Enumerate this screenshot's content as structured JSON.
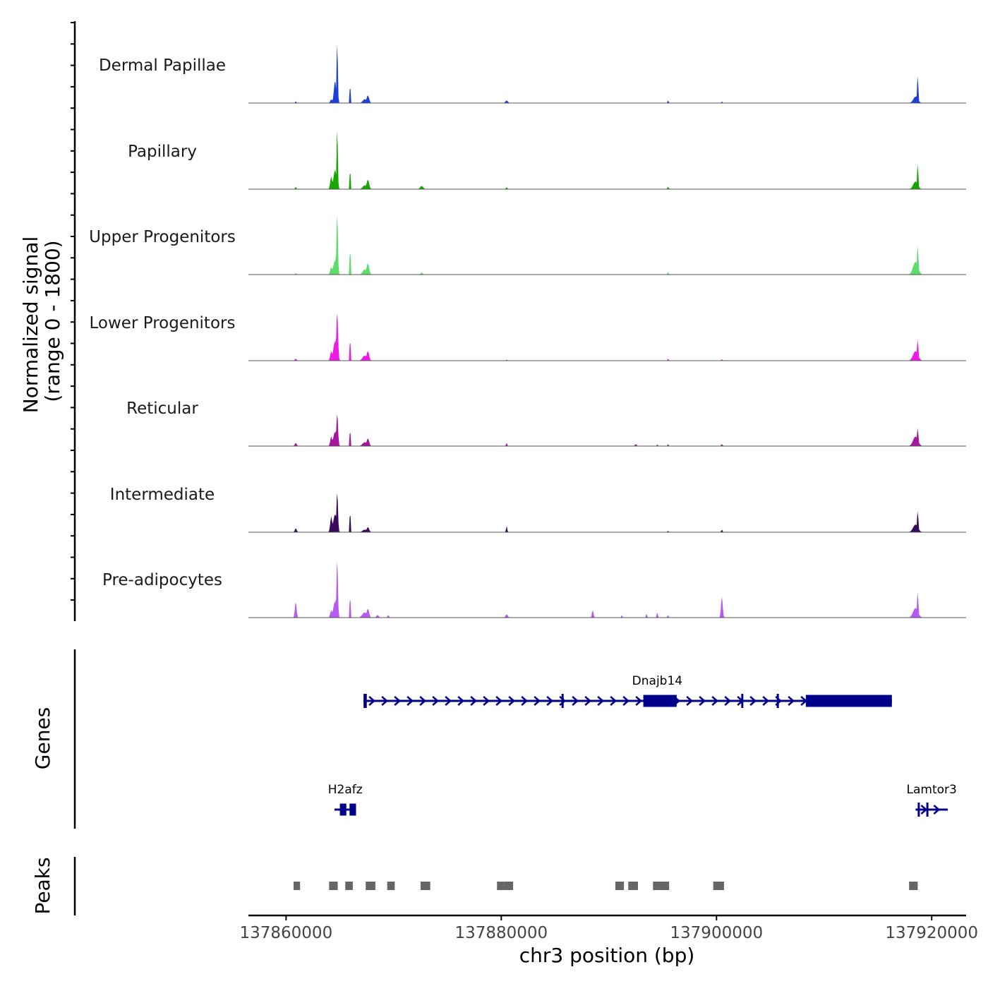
{
  "chart_data": {
    "type": "area",
    "region": {
      "chromosome": "chr3",
      "start": 137856500,
      "end": 137923200
    },
    "y_axis": {
      "label_line1": "Normalized signal",
      "label_line2": "(range 0 - 1800)",
      "range": [
        0,
        1800
      ]
    },
    "x_axis": {
      "label": "chr3 position (bp)",
      "ticks": [
        137860000,
        137880000,
        137900000,
        137920000
      ]
    },
    "tracks": [
      {
        "name": "Dermal Papillae",
        "color": "#1F3FD6",
        "peaks": [
          {
            "pos": 137860900,
            "h": 0.03,
            "w": 140
          },
          {
            "pos": 137864200,
            "h": 0.06,
            "w": 260
          },
          {
            "pos": 137864750,
            "h": 1.0,
            "w": 160
          },
          {
            "pos": 137864550,
            "h": 0.35,
            "w": 300
          },
          {
            "pos": 137865950,
            "h": 0.35,
            "w": 110
          },
          {
            "pos": 137867600,
            "h": 0.12,
            "w": 330
          },
          {
            "pos": 137867300,
            "h": 0.06,
            "w": 500
          },
          {
            "pos": 137880500,
            "h": 0.04,
            "w": 330
          },
          {
            "pos": 137895500,
            "h": 0.04,
            "w": 160
          },
          {
            "pos": 137900500,
            "h": 0.03,
            "w": 120
          },
          {
            "pos": 137918700,
            "h": 0.45,
            "w": 160
          },
          {
            "pos": 137918500,
            "h": 0.1,
            "w": 600
          }
        ]
      },
      {
        "name": "Papillary",
        "color": "#16A800",
        "peaks": [
          {
            "pos": 137860900,
            "h": 0.04,
            "w": 140
          },
          {
            "pos": 137864200,
            "h": 0.2,
            "w": 260
          },
          {
            "pos": 137864750,
            "h": 1.0,
            "w": 160
          },
          {
            "pos": 137864550,
            "h": 0.3,
            "w": 400
          },
          {
            "pos": 137865950,
            "h": 0.38,
            "w": 110
          },
          {
            "pos": 137867600,
            "h": 0.15,
            "w": 330
          },
          {
            "pos": 137867300,
            "h": 0.06,
            "w": 500
          },
          {
            "pos": 137872600,
            "h": 0.05,
            "w": 400
          },
          {
            "pos": 137880500,
            "h": 0.03,
            "w": 200
          },
          {
            "pos": 137895500,
            "h": 0.04,
            "w": 160
          },
          {
            "pos": 137918700,
            "h": 0.42,
            "w": 160
          },
          {
            "pos": 137918500,
            "h": 0.12,
            "w": 600
          }
        ]
      },
      {
        "name": "Upper Progenitors",
        "color": "#5EDC6A",
        "peaks": [
          {
            "pos": 137860900,
            "h": 0.03,
            "w": 140
          },
          {
            "pos": 137864200,
            "h": 0.12,
            "w": 260
          },
          {
            "pos": 137864750,
            "h": 1.0,
            "w": 180
          },
          {
            "pos": 137864550,
            "h": 0.22,
            "w": 450
          },
          {
            "pos": 137865950,
            "h": 0.5,
            "w": 110
          },
          {
            "pos": 137867600,
            "h": 0.18,
            "w": 330
          },
          {
            "pos": 137867300,
            "h": 0.08,
            "w": 520
          },
          {
            "pos": 137872600,
            "h": 0.03,
            "w": 300
          },
          {
            "pos": 137895500,
            "h": 0.04,
            "w": 160
          },
          {
            "pos": 137918700,
            "h": 0.48,
            "w": 170
          },
          {
            "pos": 137918500,
            "h": 0.2,
            "w": 650
          }
        ]
      },
      {
        "name": "Lower Progenitors",
        "color": "#EE1AE6",
        "peaks": [
          {
            "pos": 137860900,
            "h": 0.03,
            "w": 250
          },
          {
            "pos": 137864200,
            "h": 0.15,
            "w": 260
          },
          {
            "pos": 137864750,
            "h": 0.78,
            "w": 220
          },
          {
            "pos": 137864550,
            "h": 0.3,
            "w": 450
          },
          {
            "pos": 137865950,
            "h": 0.42,
            "w": 110
          },
          {
            "pos": 137867600,
            "h": 0.15,
            "w": 330
          },
          {
            "pos": 137867300,
            "h": 0.08,
            "w": 550
          },
          {
            "pos": 137880500,
            "h": 0.02,
            "w": 150
          },
          {
            "pos": 137895500,
            "h": 0.03,
            "w": 160
          },
          {
            "pos": 137900500,
            "h": 0.02,
            "w": 200
          },
          {
            "pos": 137918700,
            "h": 0.35,
            "w": 170
          },
          {
            "pos": 137918500,
            "h": 0.15,
            "w": 650
          }
        ]
      },
      {
        "name": "Reticular",
        "color": "#A7169F",
        "peaks": [
          {
            "pos": 137860900,
            "h": 0.05,
            "w": 250
          },
          {
            "pos": 137864200,
            "h": 0.15,
            "w": 260
          },
          {
            "pos": 137864750,
            "h": 0.52,
            "w": 220
          },
          {
            "pos": 137864550,
            "h": 0.22,
            "w": 450
          },
          {
            "pos": 137865950,
            "h": 0.32,
            "w": 110
          },
          {
            "pos": 137867600,
            "h": 0.12,
            "w": 330
          },
          {
            "pos": 137867300,
            "h": 0.06,
            "w": 550
          },
          {
            "pos": 137880500,
            "h": 0.05,
            "w": 150
          },
          {
            "pos": 137892500,
            "h": 0.03,
            "w": 250
          },
          {
            "pos": 137894500,
            "h": 0.03,
            "w": 120
          },
          {
            "pos": 137895500,
            "h": 0.03,
            "w": 160
          },
          {
            "pos": 137900500,
            "h": 0.03,
            "w": 200
          },
          {
            "pos": 137918700,
            "h": 0.3,
            "w": 170
          },
          {
            "pos": 137918500,
            "h": 0.15,
            "w": 650
          }
        ]
      },
      {
        "name": "Intermediate",
        "color": "#3A0A5C",
        "peaks": [
          {
            "pos": 137860900,
            "h": 0.06,
            "w": 250
          },
          {
            "pos": 137864200,
            "h": 0.25,
            "w": 260
          },
          {
            "pos": 137864750,
            "h": 0.65,
            "w": 200
          },
          {
            "pos": 137864550,
            "h": 0.28,
            "w": 450
          },
          {
            "pos": 137865950,
            "h": 0.4,
            "w": 110
          },
          {
            "pos": 137867600,
            "h": 0.08,
            "w": 330
          },
          {
            "pos": 137867300,
            "h": 0.04,
            "w": 550
          },
          {
            "pos": 137880500,
            "h": 0.1,
            "w": 150
          },
          {
            "pos": 137895500,
            "h": 0.02,
            "w": 160
          },
          {
            "pos": 137900500,
            "h": 0.04,
            "w": 160
          },
          {
            "pos": 137918700,
            "h": 0.35,
            "w": 170
          },
          {
            "pos": 137918500,
            "h": 0.12,
            "w": 650
          }
        ]
      },
      {
        "name": "Pre-adipocytes",
        "color": "#B65BF1",
        "peaks": [
          {
            "pos": 137860900,
            "h": 0.25,
            "w": 220
          },
          {
            "pos": 137864200,
            "h": 0.12,
            "w": 260
          },
          {
            "pos": 137864750,
            "h": 0.95,
            "w": 180
          },
          {
            "pos": 137864550,
            "h": 0.25,
            "w": 450
          },
          {
            "pos": 137865950,
            "h": 0.42,
            "w": 110
          },
          {
            "pos": 137867600,
            "h": 0.14,
            "w": 330
          },
          {
            "pos": 137867300,
            "h": 0.08,
            "w": 600
          },
          {
            "pos": 137868500,
            "h": 0.04,
            "w": 300
          },
          {
            "pos": 137869500,
            "h": 0.04,
            "w": 200
          },
          {
            "pos": 137880500,
            "h": 0.05,
            "w": 300
          },
          {
            "pos": 137888500,
            "h": 0.12,
            "w": 200
          },
          {
            "pos": 137891200,
            "h": 0.04,
            "w": 150
          },
          {
            "pos": 137893500,
            "h": 0.06,
            "w": 150
          },
          {
            "pos": 137894500,
            "h": 0.08,
            "w": 150
          },
          {
            "pos": 137895500,
            "h": 0.04,
            "w": 160
          },
          {
            "pos": 137900500,
            "h": 0.33,
            "w": 220
          },
          {
            "pos": 137918700,
            "h": 0.42,
            "w": 170
          },
          {
            "pos": 137918500,
            "h": 0.15,
            "w": 650
          }
        ]
      }
    ],
    "genes_panel": {
      "label": "Genes",
      "genes": [
        {
          "name": "Dnajb14",
          "start": 137867200,
          "end": 137916300,
          "strand": "+",
          "row": 0,
          "exons": [
            [
              137867200,
              137867500
            ],
            [
              137885600,
              137885700
            ],
            [
              137893200,
              137896300
            ],
            [
              137902300,
              137902400
            ],
            [
              137905600,
              137905700
            ],
            [
              137908300,
              137916300
            ]
          ]
        },
        {
          "name": "H2afz",
          "start": 137864500,
          "end": 137866500,
          "strand": "-",
          "row": 1,
          "exons": [
            [
              137865000,
              137865600
            ],
            [
              137865900,
              137866500
            ]
          ]
        },
        {
          "name": "Lamtor3",
          "start": 137918500,
          "end": 137921500,
          "strand": "+",
          "row": 1,
          "exons": [
            [
              137918700,
              137918800
            ],
            [
              137919500,
              137919600
            ]
          ]
        }
      ]
    },
    "peaks_panel": {
      "label": "Peaks",
      "regions": [
        [
          137860700,
          137861300
        ],
        [
          137864000,
          137864800
        ],
        [
          137865500,
          137866200
        ],
        [
          137867400,
          137868300
        ],
        [
          137869400,
          137870100
        ],
        [
          137872500,
          137873400
        ],
        [
          137879600,
          137880300
        ],
        [
          137880300,
          137881100
        ],
        [
          137890600,
          137891400
        ],
        [
          137891800,
          137892700
        ],
        [
          137894100,
          137894700
        ],
        [
          137894700,
          137895600
        ],
        [
          137899700,
          137900700
        ],
        [
          137917900,
          137918700
        ]
      ]
    }
  }
}
